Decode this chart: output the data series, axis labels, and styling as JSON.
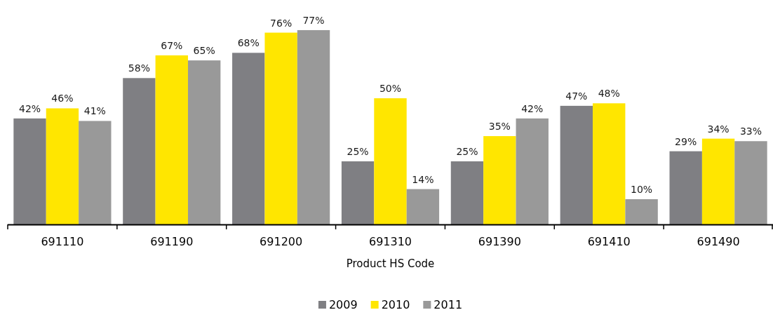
{
  "chart_data": {
    "type": "bar",
    "xlabel": "Product HS Code",
    "categories": [
      "691110",
      "691190",
      "691200",
      "691310",
      "691390",
      "691410",
      "691490"
    ],
    "series": [
      {
        "name": "2009",
        "color": "#7f7f83",
        "values": [
          42,
          58,
          68,
          25,
          25,
          47,
          29
        ],
        "value_labels": [
          "42%",
          "58%",
          "68%",
          "25%",
          "25%",
          "47%",
          "29%"
        ]
      },
      {
        "name": "2010",
        "color": "#ffe600",
        "values": [
          46,
          67,
          76,
          50,
          35,
          48,
          34
        ],
        "value_labels": [
          "46%",
          "67%",
          "76%",
          "50%",
          "35%",
          "48%",
          "34%"
        ]
      },
      {
        "name": "2011",
        "color": "#999999",
        "values": [
          41,
          65,
          77,
          14,
          42,
          10,
          33
        ],
        "value_labels": [
          "41%",
          "65%",
          "77%",
          "14%",
          "42%",
          "10%",
          "33%"
        ]
      }
    ],
    "legend": "bottom"
  }
}
